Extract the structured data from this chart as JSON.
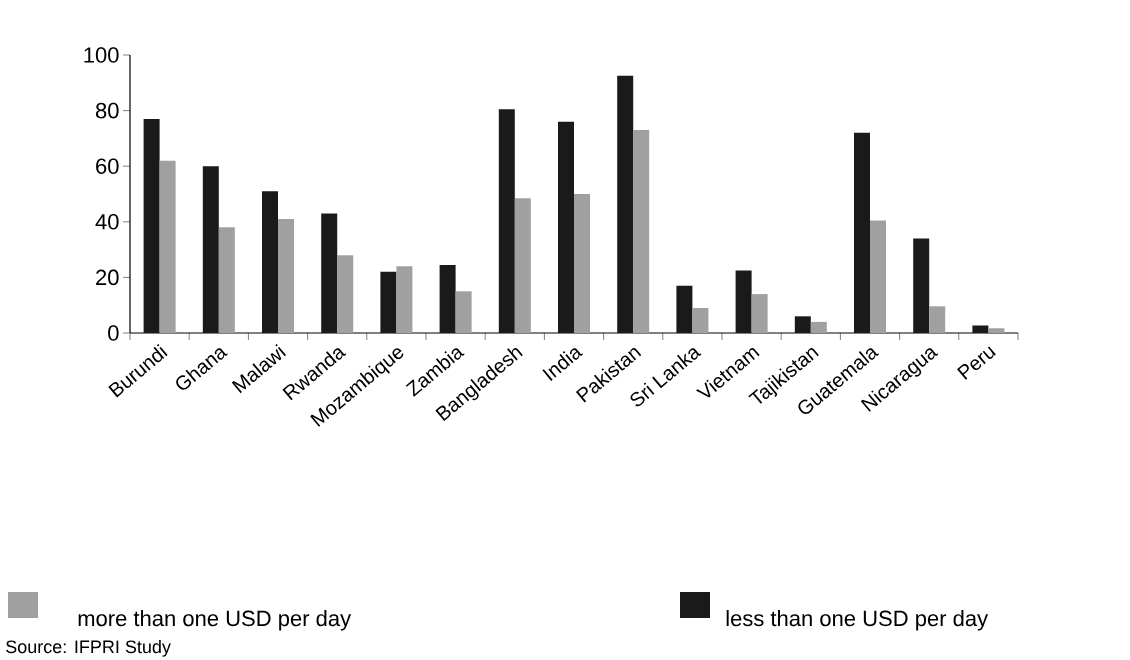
{
  "chart_data": {
    "type": "bar",
    "categories": [
      "Burundi",
      "Ghana",
      "Malawi",
      "Rwanda",
      "Mozambique",
      "Zambia",
      "Bangladesh",
      "India",
      "Pakistan",
      "Sri Lanka",
      "Vietnam",
      "Tajikistan",
      "Guatemala",
      "Nicaragua",
      "Peru"
    ],
    "series": [
      {
        "name": "less than one USD per day",
        "color": "#1a1a1a",
        "values": [
          77,
          60,
          51,
          43,
          22,
          24.5,
          80.5,
          76,
          92.5,
          17,
          22.5,
          6,
          72,
          34,
          2.7
        ]
      },
      {
        "name": "more than one USD per day",
        "color": "#a0a0a0",
        "values": [
          62,
          38,
          41,
          28,
          24,
          15,
          48.5,
          50,
          73,
          9,
          14,
          4,
          40.5,
          9.6,
          1.7
        ]
      }
    ],
    "ylim": [
      0,
      100
    ],
    "yticks": [
      0,
      20,
      40,
      60,
      80,
      100
    ],
    "grid": false,
    "legend": "bottom",
    "annotations": [
      "Source: IFPRI Study"
    ]
  }
}
